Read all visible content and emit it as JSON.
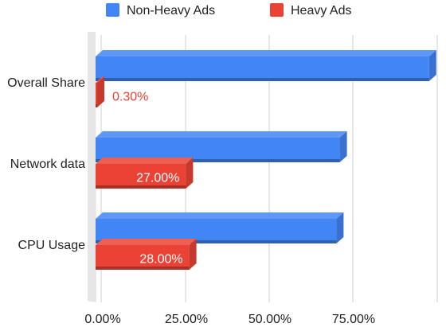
{
  "chart_data": {
    "type": "bar",
    "orientation": "horizontal",
    "style": "3d",
    "categories": [
      "Overall Share",
      "Network data",
      "CPU Usage"
    ],
    "series": [
      {
        "name": "Non-Heavy Ads",
        "color": "#4285f4",
        "values": [
          99.7,
          73.0,
          72.0
        ],
        "labels": [
          "",
          "",
          ""
        ]
      },
      {
        "name": "Heavy Ads",
        "color": "#ea4335",
        "values": [
          0.3,
          27.0,
          28.0
        ],
        "labels": [
          "0.30%",
          "27.00%",
          "28.00%"
        ]
      }
    ],
    "xticks": [
      "0.00%",
      "25.00%",
      "50.00%",
      "75.00%"
    ],
    "xlim": [
      0,
      100
    ],
    "grid": true,
    "legend_position": "top"
  }
}
